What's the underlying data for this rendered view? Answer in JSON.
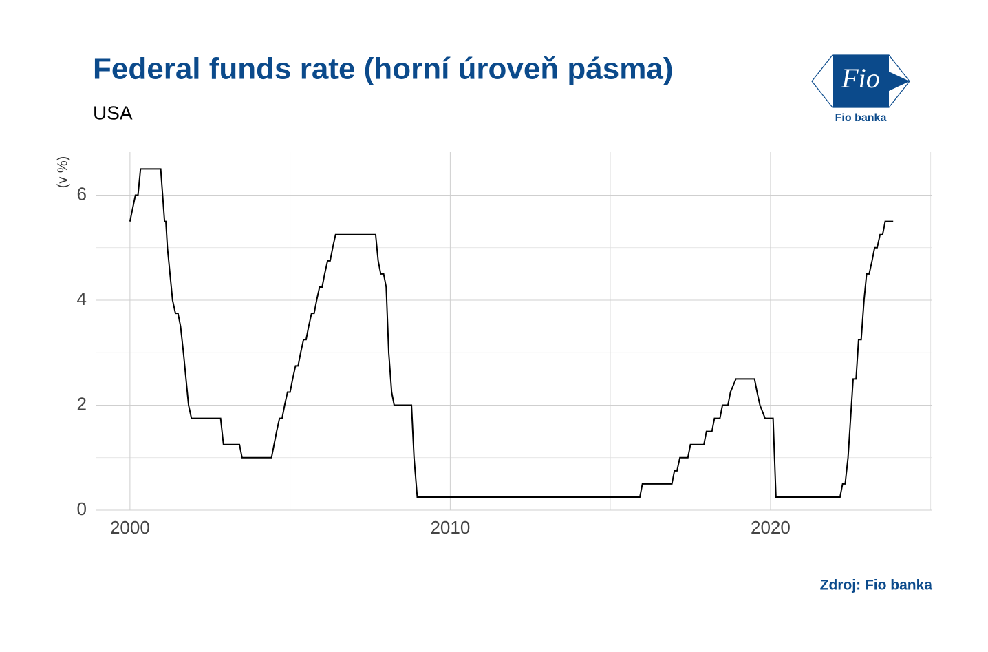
{
  "chart_data": {
    "type": "line",
    "title": "Federal funds rate (horní úroveň pásma)",
    "subtitle": "USA",
    "y_label": "(v %)",
    "caption": "Zdroj: Fio banka",
    "logo": {
      "mark": "Fio",
      "name": "Fio banka"
    },
    "color": "#000000",
    "grid": true,
    "xlim": [
      1998.95,
      2025.05
    ],
    "xticks": [
      2000,
      2010,
      2020
    ],
    "xminorticks": [
      2005,
      2015,
      2025
    ],
    "ylim": [
      0,
      6.82
    ],
    "yticks": [
      0,
      2,
      4,
      6
    ],
    "yminorticks": [
      1,
      3,
      5
    ],
    "x": [
      2000.0,
      2000.17,
      2000.25,
      2000.33,
      2000.96,
      2001.08,
      2001.12,
      2001.17,
      2001.25,
      2001.33,
      2001.42,
      2001.5,
      2001.58,
      2001.67,
      2001.75,
      2001.83,
      2001.92,
      2002.83,
      2002.92,
      2003.42,
      2003.5,
      2004.42,
      2004.5,
      2004.58,
      2004.67,
      2004.75,
      2004.83,
      2004.92,
      2005.0,
      2005.08,
      2005.17,
      2005.25,
      2005.33,
      2005.42,
      2005.5,
      2005.58,
      2005.67,
      2005.75,
      2005.83,
      2005.92,
      2006.0,
      2006.08,
      2006.17,
      2006.25,
      2006.33,
      2006.42,
      2007.67,
      2007.75,
      2007.83,
      2007.92,
      2008.0,
      2008.08,
      2008.17,
      2008.25,
      2008.79,
      2008.87,
      2008.97,
      2015.92,
      2016.0,
      2016.92,
      2017.0,
      2017.08,
      2017.17,
      2017.42,
      2017.5,
      2017.92,
      2018.0,
      2018.17,
      2018.25,
      2018.42,
      2018.5,
      2018.67,
      2018.75,
      2018.92,
      2019.5,
      2019.58,
      2019.67,
      2019.83,
      2020.08,
      2020.17,
      2022.17,
      2022.25,
      2022.33,
      2022.42,
      2022.5,
      2022.58,
      2022.67,
      2022.75,
      2022.83,
      2022.92,
      2023.0,
      2023.08,
      2023.17,
      2023.25,
      2023.33,
      2023.42,
      2023.5,
      2023.58,
      2023.83
    ],
    "values": [
      5.5,
      6.0,
      6.0,
      6.5,
      6.5,
      5.5,
      5.5,
      5.0,
      4.5,
      4.0,
      3.75,
      3.75,
      3.5,
      3.0,
      2.5,
      2.0,
      1.75,
      1.75,
      1.25,
      1.25,
      1.0,
      1.0,
      1.25,
      1.5,
      1.75,
      1.75,
      2.0,
      2.25,
      2.25,
      2.5,
      2.75,
      2.75,
      3.0,
      3.25,
      3.25,
      3.5,
      3.75,
      3.75,
      4.0,
      4.25,
      4.25,
      4.5,
      4.75,
      4.75,
      5.0,
      5.25,
      5.25,
      4.75,
      4.5,
      4.5,
      4.25,
      3.0,
      2.25,
      2.0,
      2.0,
      1.0,
      0.25,
      0.25,
      0.5,
      0.5,
      0.75,
      0.75,
      1.0,
      1.0,
      1.25,
      1.25,
      1.5,
      1.5,
      1.75,
      1.75,
      2.0,
      2.0,
      2.25,
      2.5,
      2.5,
      2.25,
      2.0,
      1.75,
      1.75,
      0.25,
      0.25,
      0.5,
      0.5,
      1.0,
      1.75,
      2.5,
      2.5,
      3.25,
      3.25,
      4.0,
      4.5,
      4.5,
      4.75,
      5.0,
      5.0,
      5.25,
      5.25,
      5.5,
      5.5
    ]
  }
}
